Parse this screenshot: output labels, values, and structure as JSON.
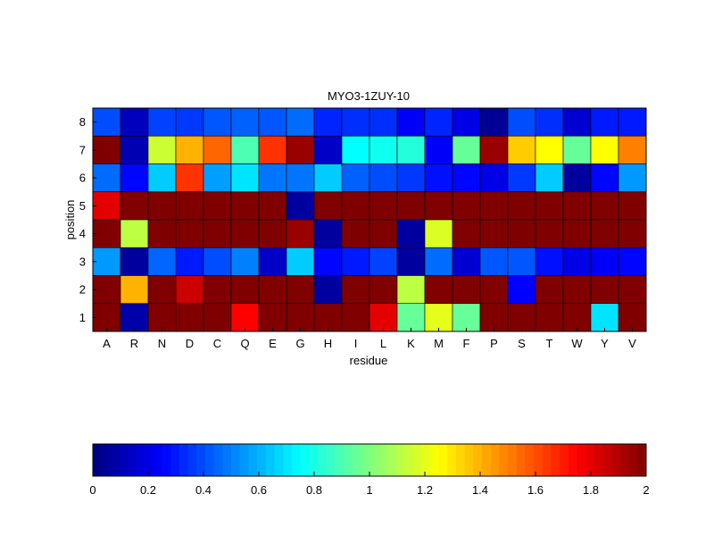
{
  "chart_data": {
    "type": "heatmap",
    "title": "MYO3-1ZUY-10",
    "xlabel": "residue",
    "ylabel": "position",
    "x_categories": [
      "A",
      "R",
      "N",
      "D",
      "C",
      "Q",
      "E",
      "G",
      "H",
      "I",
      "L",
      "K",
      "M",
      "F",
      "P",
      "S",
      "T",
      "W",
      "Y",
      "V"
    ],
    "y_categories": [
      "1",
      "2",
      "3",
      "4",
      "5",
      "6",
      "7",
      "8"
    ],
    "value_range": [
      0,
      2
    ],
    "rows": [
      {
        "position": "8",
        "values": [
          0.4,
          0.12,
          0.38,
          0.36,
          0.42,
          0.44,
          0.42,
          0.46,
          0.32,
          0.34,
          0.34,
          0.24,
          0.32,
          0.2,
          0.04,
          0.4,
          0.34,
          0.16,
          0.3,
          0.3
        ]
      },
      {
        "position": "7",
        "values": [
          2.0,
          0.1,
          1.15,
          1.4,
          1.55,
          0.9,
          1.65,
          1.95,
          0.14,
          0.75,
          0.78,
          0.82,
          0.24,
          0.95,
          1.95,
          1.35,
          1.25,
          0.95,
          1.25,
          1.5
        ]
      },
      {
        "position": "6",
        "values": [
          0.46,
          0.26,
          0.65,
          1.65,
          0.56,
          0.7,
          0.48,
          0.48,
          0.65,
          0.44,
          0.4,
          0.36,
          0.28,
          0.26,
          0.2,
          0.36,
          0.65,
          0.06,
          0.26,
          0.55
        ]
      },
      {
        "position": "5",
        "values": [
          1.8,
          2.0,
          2.0,
          2.0,
          2.0,
          2.0,
          2.0,
          0.06,
          2.0,
          2.0,
          2.0,
          2.0,
          2.0,
          2.0,
          2.0,
          2.0,
          2.0,
          2.0,
          2.0,
          2.0
        ]
      },
      {
        "position": "4",
        "values": [
          2.0,
          1.12,
          2.0,
          2.0,
          2.0,
          2.0,
          2.0,
          1.95,
          0.06,
          2.0,
          2.0,
          0.06,
          1.18,
          2.0,
          2.0,
          2.0,
          2.0,
          2.0,
          2.0,
          2.0
        ]
      },
      {
        "position": "3",
        "values": [
          0.55,
          0.06,
          0.45,
          0.3,
          0.4,
          0.5,
          0.14,
          0.65,
          0.26,
          0.3,
          0.38,
          0.06,
          0.46,
          0.16,
          0.42,
          0.42,
          0.28,
          0.2,
          0.24,
          0.26
        ]
      },
      {
        "position": "2",
        "values": [
          2.0,
          1.4,
          2.0,
          1.85,
          2.0,
          2.0,
          2.0,
          2.0,
          0.06,
          2.0,
          2.0,
          1.12,
          2.0,
          2.0,
          2.0,
          0.25,
          2.0,
          2.0,
          2.0,
          2.0
        ]
      },
      {
        "position": "1",
        "values": [
          2.0,
          0.08,
          2.0,
          2.0,
          2.0,
          1.75,
          2.0,
          2.0,
          2.0,
          2.0,
          1.8,
          0.95,
          1.2,
          0.95,
          2.0,
          2.0,
          2.0,
          2.0,
          0.7,
          2.0
        ]
      }
    ],
    "colorbar": {
      "ticks": [
        "0",
        "0.2",
        "0.4",
        "0.6",
        "0.8",
        "1",
        "1.2",
        "1.4",
        "1.6",
        "1.8",
        "2"
      ],
      "colormap": "jet",
      "orientation": "horizontal"
    }
  }
}
